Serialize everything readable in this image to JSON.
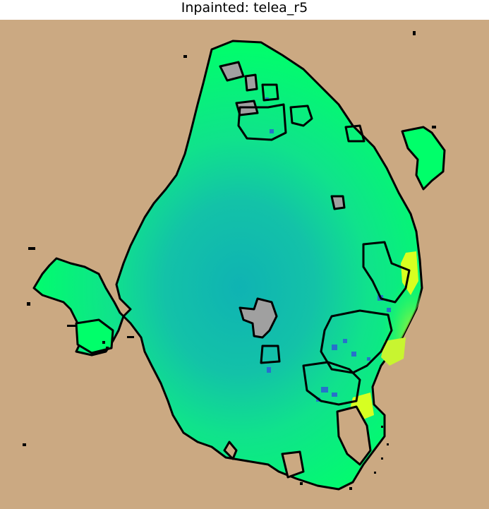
{
  "figure": {
    "title": "Inpainted: telea_r5"
  },
  "colors": {
    "background_land": "#cba982",
    "water_high": "#00ff6a",
    "water_mid": "#1ee07a",
    "water_deep": "#0fb3b3",
    "coastline": "#000000",
    "masked_gray": "#a0a0a0",
    "yellow_fill": "#d8ff20",
    "blue_fill": "#2c5fd6"
  }
}
